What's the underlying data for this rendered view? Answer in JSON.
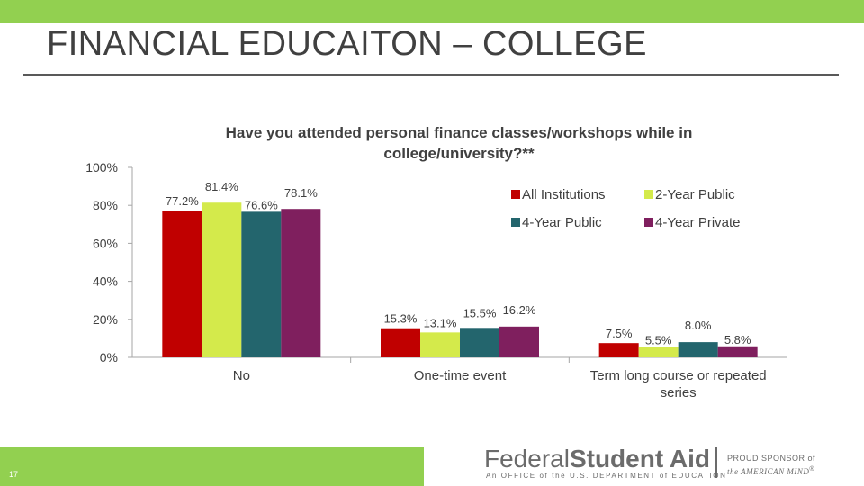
{
  "slide": {
    "title": "FINANCIAL EDUCAITON – COLLEGE",
    "page_number": "17"
  },
  "footer": {
    "logo_prefix": "Federal",
    "logo_bold": "Student Aid",
    "logo_tagline": "An OFFICE of the U.S. DEPARTMENT of EDUCATION",
    "sponsor_line1": "PROUD SPONSOR of",
    "sponsor_line2": "the AMERICAN MIND",
    "trademark": "®"
  },
  "colors": {
    "top_band": "#92d050",
    "All Institutions": "#c00000",
    "2-Year Public": "#d4ea4b",
    "4-Year Public": "#23656d",
    "4-Year Private": "#7f1f5e"
  },
  "chart_data": {
    "type": "bar",
    "title": "Have you attended personal finance classes/workshops while in college/university?**",
    "title_lines": [
      "Have you attended personal finance classes/workshops while in",
      "college/university?**"
    ],
    "categories": [
      "No",
      "One-time event",
      "Term long course or repeated series"
    ],
    "category_lines": [
      [
        "No"
      ],
      [
        "One-time event"
      ],
      [
        "Term long course or repeated",
        "series"
      ]
    ],
    "series": [
      {
        "name": "All Institutions",
        "values": [
          77.2,
          15.3,
          7.5
        ],
        "labels": [
          "77.2%",
          "15.3%",
          "7.5%"
        ]
      },
      {
        "name": "2-Year Public",
        "values": [
          81.4,
          13.1,
          5.5
        ],
        "labels": [
          "81.4%",
          "13.1%",
          "5.5%"
        ]
      },
      {
        "name": "4-Year Public",
        "values": [
          76.6,
          15.5,
          8.0
        ],
        "labels": [
          "76.6%",
          "15.5%",
          "8.0%"
        ]
      },
      {
        "name": "4-Year Private",
        "values": [
          78.1,
          16.2,
          5.8
        ],
        "labels": [
          "78.1%",
          "16.2%",
          "5.8%"
        ]
      }
    ],
    "ylim": [
      0,
      100
    ],
    "yticks": [
      "0%",
      "20%",
      "40%",
      "60%",
      "80%",
      "100%"
    ],
    "xlabel": "",
    "ylabel": "",
    "legend_position": "top-right",
    "grid": false
  }
}
